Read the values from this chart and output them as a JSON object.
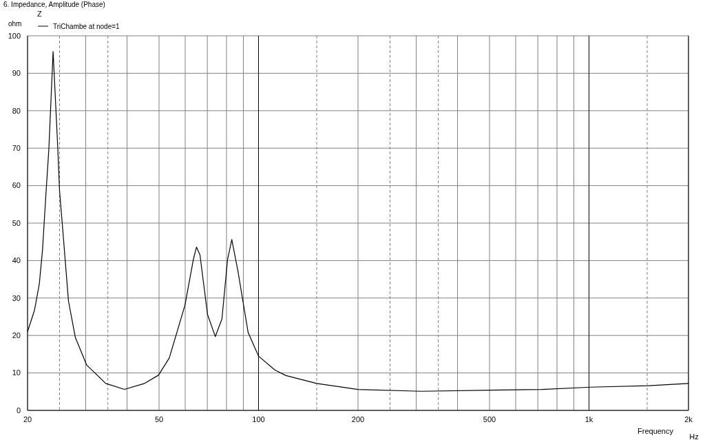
{
  "chart_data": {
    "type": "line",
    "title": "6. Impedance, Amplitude (Phase)",
    "ylabel": "ohm",
    "xlabel": "Frequency",
    "legend_title": "Z",
    "annotations": [
      "Hz"
    ],
    "series": [
      {
        "name": "TriChambe at node=1",
        "color": "#000000",
        "x": [
          20,
          21.0,
          21.7,
          22.2,
          22.7,
          23.2,
          23.9,
          24.7,
          25.0,
          25.5,
          26.6,
          27.9,
          30.2,
          34.5,
          39.3,
          45.2,
          49.8,
          53.7,
          59.9,
          63.5,
          64.9,
          66.5,
          70.1,
          74.0,
          77.5,
          80.6,
          83.0,
          86.6,
          93.0,
          100,
          112,
          121,
          150,
          200,
          311,
          500,
          719,
          1011,
          1516,
          2000
        ],
        "values": [
          21.0,
          26.8,
          33.6,
          42.8,
          56.8,
          69.7,
          95.8,
          69.7,
          58.6,
          49.4,
          29.2,
          19.5,
          12.1,
          7.2,
          5.6,
          7.2,
          9.4,
          14.0,
          28.1,
          40.3,
          43.6,
          41.5,
          25.6,
          19.7,
          24.4,
          40.3,
          45.6,
          37.3,
          20.8,
          14.5,
          10.8,
          9.3,
          7.2,
          5.6,
          5.1,
          5.4,
          5.6,
          6.2,
          6.6,
          7.2
        ]
      }
    ],
    "log": "x",
    "xlim": [
      20,
      2000
    ],
    "ylim": [
      0,
      100
    ],
    "xticks": [
      20,
      {
        "value": 30,
        "label": null
      },
      {
        "value": 40,
        "label": null
      },
      50,
      {
        "value": 60,
        "label": null
      },
      {
        "value": 70,
        "label": null
      },
      {
        "value": 80,
        "label": null
      },
      {
        "value": 90,
        "label": null
      },
      100,
      200,
      {
        "value": 300,
        "label": null
      },
      {
        "value": 400,
        "label": null
      },
      500,
      {
        "value": 600,
        "label": null
      },
      {
        "value": 700,
        "label": null
      },
      {
        "value": 800,
        "label": null
      },
      {
        "value": 900,
        "label": null
      },
      {
        "value": 1000,
        "label": "1k"
      },
      {
        "value": 2000,
        "label": "2k"
      }
    ],
    "yticks": [
      0,
      10,
      20,
      30,
      40,
      50,
      60,
      70,
      80,
      90,
      100
    ],
    "grid": true,
    "legend": "top left",
    "line_style": "solid",
    "ref_lines": [
      {
        "axis": "x",
        "value": 25,
        "color": "#808080",
        "line_style": "dashed"
      },
      {
        "axis": "x",
        "value": 35,
        "color": "#808080",
        "line_style": "dashed"
      },
      {
        "axis": "x",
        "value": 150,
        "color": "#808080",
        "line_style": "dashed"
      },
      {
        "axis": "x",
        "value": 250,
        "color": "#808080",
        "line_style": "dashed"
      },
      {
        "axis": "x",
        "value": 350,
        "color": "#808080",
        "line_style": "dashed"
      },
      {
        "axis": "x",
        "value": 1500,
        "color": "#808080",
        "line_style": "dashed"
      }
    ]
  }
}
